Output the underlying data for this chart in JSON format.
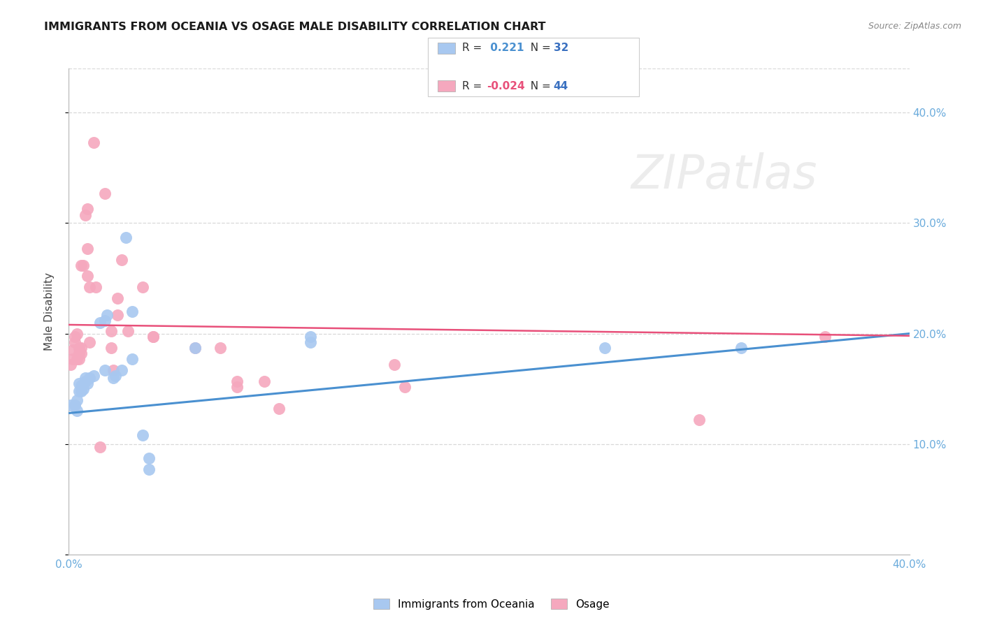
{
  "title": "IMMIGRANTS FROM OCEANIA VS OSAGE MALE DISABILITY CORRELATION CHART",
  "source": "Source: ZipAtlas.com",
  "ylabel": "Male Disability",
  "xlim": [
    0.0,
    0.4
  ],
  "ylim": [
    0.0,
    0.44
  ],
  "yticks": [
    0.0,
    0.1,
    0.2,
    0.3,
    0.4
  ],
  "xticks": [
    0.0,
    0.4
  ],
  "legend_blue_r": " 0.221",
  "legend_blue_n": "32",
  "legend_pink_r": "-0.024",
  "legend_pink_n": "44",
  "legend_label_blue": "Immigrants from Oceania",
  "legend_label_pink": "Osage",
  "blue_color": "#a8c8f0",
  "pink_color": "#f5a8be",
  "blue_line_color": "#4a90d0",
  "pink_line_color": "#e8507a",
  "blue_r_color": "#4a90d0",
  "pink_r_color": "#e8507a",
  "n_color": "#3a70c0",
  "watermark_color": "#e8e8e8",
  "background_color": "#ffffff",
  "gridline_color": "#d8d8d8",
  "tick_color": "#6aabdc",
  "scatter_blue": [
    [
      0.001,
      0.135
    ],
    [
      0.003,
      0.135
    ],
    [
      0.004,
      0.14
    ],
    [
      0.004,
      0.13
    ],
    [
      0.005,
      0.155
    ],
    [
      0.005,
      0.148
    ],
    [
      0.006,
      0.148
    ],
    [
      0.006,
      0.153
    ],
    [
      0.007,
      0.15
    ],
    [
      0.008,
      0.16
    ],
    [
      0.008,
      0.157
    ],
    [
      0.009,
      0.155
    ],
    [
      0.01,
      0.16
    ],
    [
      0.012,
      0.162
    ],
    [
      0.015,
      0.21
    ],
    [
      0.017,
      0.167
    ],
    [
      0.017,
      0.212
    ],
    [
      0.018,
      0.217
    ],
    [
      0.021,
      0.16
    ],
    [
      0.022,
      0.162
    ],
    [
      0.025,
      0.167
    ],
    [
      0.027,
      0.287
    ],
    [
      0.03,
      0.177
    ],
    [
      0.03,
      0.22
    ],
    [
      0.035,
      0.108
    ],
    [
      0.038,
      0.087
    ],
    [
      0.038,
      0.077
    ],
    [
      0.06,
      0.187
    ],
    [
      0.115,
      0.197
    ],
    [
      0.115,
      0.192
    ],
    [
      0.255,
      0.187
    ],
    [
      0.32,
      0.187
    ]
  ],
  "scatter_pink": [
    [
      0.001,
      0.172
    ],
    [
      0.002,
      0.177
    ],
    [
      0.002,
      0.185
    ],
    [
      0.003,
      0.192
    ],
    [
      0.003,
      0.197
    ],
    [
      0.004,
      0.2
    ],
    [
      0.004,
      0.177
    ],
    [
      0.005,
      0.187
    ],
    [
      0.005,
      0.182
    ],
    [
      0.005,
      0.177
    ],
    [
      0.006,
      0.187
    ],
    [
      0.006,
      0.182
    ],
    [
      0.006,
      0.262
    ],
    [
      0.007,
      0.262
    ],
    [
      0.008,
      0.307
    ],
    [
      0.009,
      0.277
    ],
    [
      0.009,
      0.313
    ],
    [
      0.009,
      0.252
    ],
    [
      0.01,
      0.242
    ],
    [
      0.01,
      0.192
    ],
    [
      0.012,
      0.373
    ],
    [
      0.013,
      0.242
    ],
    [
      0.015,
      0.097
    ],
    [
      0.017,
      0.327
    ],
    [
      0.02,
      0.202
    ],
    [
      0.02,
      0.187
    ],
    [
      0.021,
      0.167
    ],
    [
      0.023,
      0.217
    ],
    [
      0.023,
      0.232
    ],
    [
      0.025,
      0.267
    ],
    [
      0.028,
      0.202
    ],
    [
      0.035,
      0.242
    ],
    [
      0.04,
      0.197
    ],
    [
      0.04,
      0.197
    ],
    [
      0.06,
      0.187
    ],
    [
      0.072,
      0.187
    ],
    [
      0.08,
      0.157
    ],
    [
      0.08,
      0.152
    ],
    [
      0.093,
      0.157
    ],
    [
      0.1,
      0.132
    ],
    [
      0.155,
      0.172
    ],
    [
      0.16,
      0.152
    ],
    [
      0.3,
      0.122
    ],
    [
      0.36,
      0.197
    ]
  ],
  "blue_line_x": [
    0.0,
    0.4
  ],
  "blue_line_y": [
    0.128,
    0.2
  ],
  "pink_line_x": [
    0.0,
    0.4
  ],
  "pink_line_y": [
    0.208,
    0.198
  ]
}
